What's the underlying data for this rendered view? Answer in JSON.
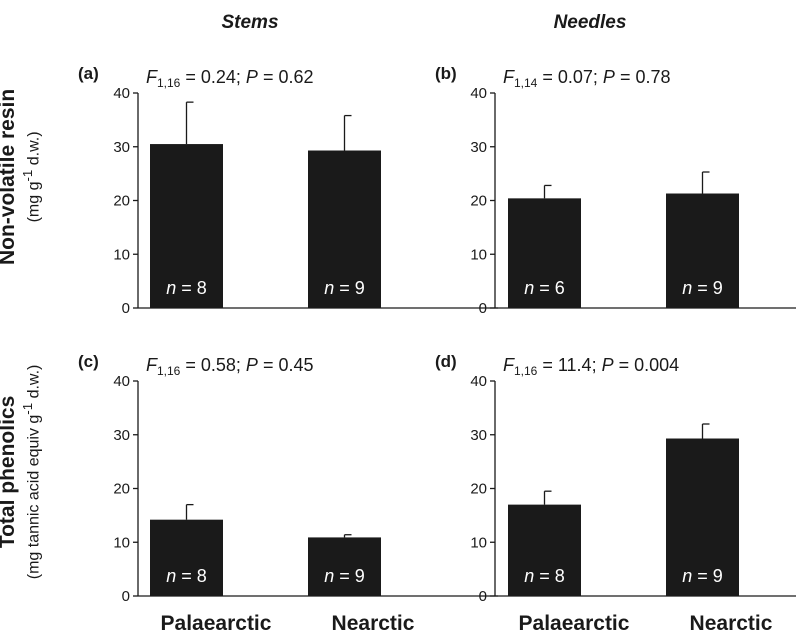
{
  "column_titles": [
    "Stems",
    "Needles"
  ],
  "row_labels": [
    {
      "main": "Non-volatile resin",
      "unit_html": "(mg g<sup>-1</sup> d.w.)"
    },
    {
      "main": "Total phenolics",
      "unit_html": "(mg tannic acid equiv g<sup>-1</sup> d.w.)"
    }
  ],
  "x_categories": [
    "Palaearctic",
    "Nearctic"
  ],
  "chart_data": [
    {
      "type": "bar",
      "panel": "(a)",
      "stat": {
        "df": "1,16",
        "F": "0.24",
        "P": "0.62"
      },
      "categories": [
        "Palaearctic",
        "Nearctic"
      ],
      "values": [
        30.5,
        29.3
      ],
      "errors": [
        7.8,
        6.5
      ],
      "n": [
        "8",
        "9"
      ],
      "ylim": [
        0,
        40
      ],
      "yticks": [
        0,
        10,
        20,
        30,
        40
      ]
    },
    {
      "type": "bar",
      "panel": "(b)",
      "stat": {
        "df": "1,14",
        "F": "0.07",
        "P": "0.78"
      },
      "categories": [
        "Palaearctic",
        "Nearctic"
      ],
      "values": [
        20.4,
        21.3
      ],
      "errors": [
        2.4,
        4.0
      ],
      "n": [
        "6",
        "9"
      ],
      "ylim": [
        0,
        40
      ],
      "yticks": [
        0,
        10,
        20,
        30,
        40
      ]
    },
    {
      "type": "bar",
      "panel": "(c)",
      "stat": {
        "df": "1,16",
        "F": "0.58",
        "P": "0.45"
      },
      "categories": [
        "Palaearctic",
        "Nearctic"
      ],
      "values": [
        14.2,
        10.9
      ],
      "errors": [
        2.8,
        0.5
      ],
      "n": [
        "8",
        "9"
      ],
      "ylim": [
        0,
        40
      ],
      "yticks": [
        0,
        10,
        20,
        30,
        40
      ]
    },
    {
      "type": "bar",
      "panel": "(d)",
      "stat": {
        "df": "1,16",
        "F": "11.4",
        "P": "0.004"
      },
      "categories": [
        "Palaearctic",
        "Nearctic"
      ],
      "values": [
        17.0,
        29.3
      ],
      "errors": [
        2.5,
        2.7
      ],
      "n": [
        "8",
        "9"
      ],
      "ylim": [
        0,
        40
      ],
      "yticks": [
        0,
        10,
        20,
        30,
        40
      ]
    }
  ],
  "colors": {
    "bar": "#1a1a1a",
    "axis": "#1a1a1a",
    "text": "#1a1a1a",
    "n_label": "#ffffff"
  }
}
